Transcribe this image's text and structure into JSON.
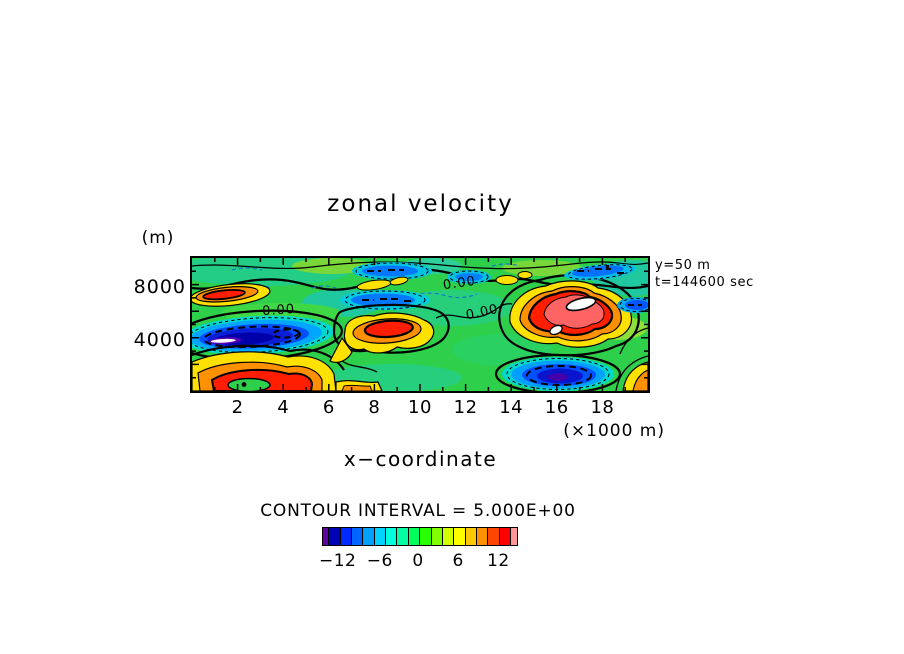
{
  "title": "zonal velocity",
  "plot": {
    "y_axis": {
      "unit_label": "(m)",
      "tick_labels": [
        "8000",
        "4000"
      ]
    },
    "x_axis": {
      "tick_labels": [
        "2",
        "4",
        "6",
        "8",
        "10",
        "12",
        "14",
        "16",
        "18"
      ],
      "unit_label": "(×1000 m)",
      "axis_label": "x−coordinate"
    },
    "annotations": [
      "y=50 m",
      "t=144600 sec"
    ],
    "contour_labels": [
      "0.00",
      "0.00",
      "0.00"
    ]
  },
  "legend": {
    "contour_interval_text": "CONTOUR INTERVAL = 5.000E+00",
    "colorbar": {
      "colors": [
        "#6000a8",
        "#0000b4",
        "#0028ff",
        "#0064ff",
        "#00a0ff",
        "#00d2ff",
        "#00ffdc",
        "#00ffa0",
        "#00ff5a",
        "#28ff00",
        "#82ff00",
        "#d2ff00",
        "#ffff00",
        "#ffc800",
        "#ff9100",
        "#ff4600",
        "#ff0000",
        "#ff9696"
      ],
      "tick_labels": [
        "−12",
        "−6",
        "0",
        "6",
        "12"
      ],
      "tick_positions_pct": [
        8,
        29.5,
        49,
        69.5,
        90
      ]
    }
  },
  "chart_data": {
    "type": "heatmap",
    "subtype": "filled_contour_map",
    "title": "zonal velocity",
    "xlabel": "x−coordinate",
    "x_units": "×1000 m",
    "x_ticks": [
      2,
      4,
      6,
      8,
      10,
      12,
      14,
      16,
      18
    ],
    "x_range_m": [
      0,
      20000
    ],
    "y_units": "m",
    "y_ticks": [
      4000,
      8000
    ],
    "y_range_m": [
      0,
      10000
    ],
    "slice_info": {
      "y": "50 m",
      "t": "144600 sec"
    },
    "contour_interval": 5.0,
    "zero_contour_label": "0.00",
    "colorbar_tick_values": [
      -12,
      -6,
      0,
      6,
      12
    ],
    "grid": false,
    "legend_position": "bottom",
    "estimated_extrema": [
      {
        "kind": "max",
        "x_km": 16.3,
        "y_m": 6200,
        "value_est": "> +15 (white core)"
      },
      {
        "kind": "min",
        "x_km": 2.6,
        "y_m": 4100,
        "value_est": "< -15 (white core)"
      },
      {
        "kind": "max",
        "x_km": 8.9,
        "y_m": 4600,
        "value_est": "~ +12"
      },
      {
        "kind": "max",
        "x_km": 4.4,
        "y_m": 600,
        "value_est": "~ +12"
      },
      {
        "kind": "max",
        "x_km": 1.6,
        "y_m": 7300,
        "value_est": "~ +9"
      },
      {
        "kind": "min",
        "x_km": 16.0,
        "y_m": 1200,
        "value_est": "~ -12"
      },
      {
        "kind": "min",
        "x_km": 8.4,
        "y_m": 6800,
        "value_est": "~ -6"
      },
      {
        "kind": "min",
        "x_km": 19.4,
        "y_m": 6500,
        "value_est": "~ -7"
      },
      {
        "kind": "min",
        "x_km": 9.5,
        "y_m": 9300,
        "value_est": "~ -5"
      }
    ]
  }
}
